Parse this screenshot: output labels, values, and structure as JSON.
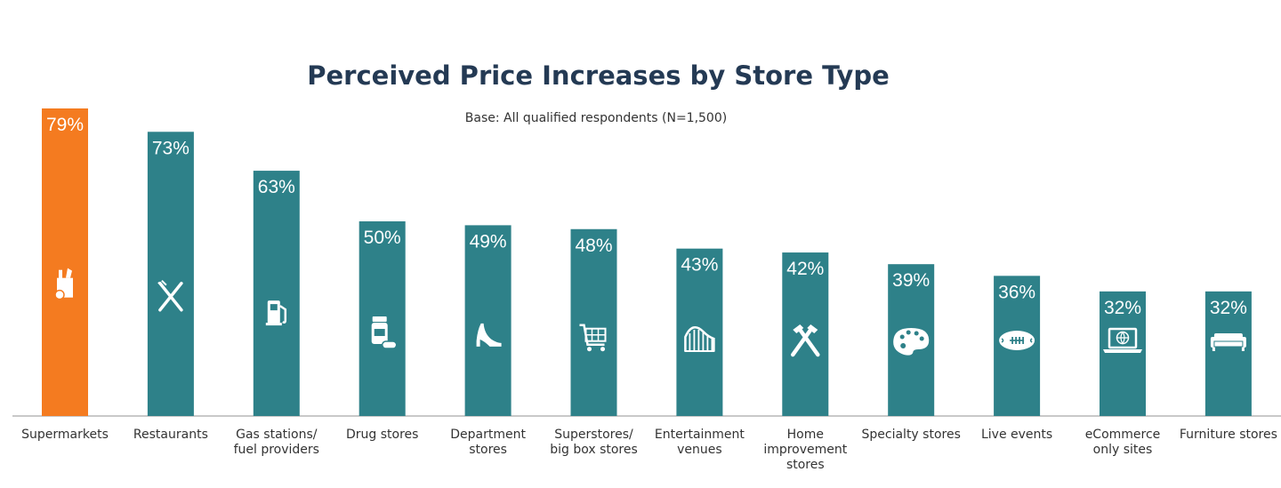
{
  "chart_data": {
    "type": "bar",
    "title": "Perceived Price Increases by Store Type",
    "subtitle": "Base: All qualified respondents (N=1,500)",
    "categories": [
      [
        "Supermarkets"
      ],
      [
        "Restaurants"
      ],
      [
        "Gas stations/",
        "fuel providers"
      ],
      [
        "Drug stores"
      ],
      [
        "Department",
        "stores"
      ],
      [
        "Superstores/",
        "big box stores"
      ],
      [
        "Entertainment",
        "venues"
      ],
      [
        "Home",
        "improvement",
        "stores"
      ],
      [
        "Specialty stores"
      ],
      [
        "Live events"
      ],
      [
        "eCommerce",
        "only sites"
      ],
      [
        "Furniture stores"
      ]
    ],
    "values": [
      79,
      73,
      63,
      50,
      49,
      48,
      43,
      42,
      39,
      36,
      32,
      32
    ],
    "value_labels": [
      "79%",
      "73%",
      "63%",
      "50%",
      "49%",
      "48%",
      "43%",
      "42%",
      "39%",
      "36%",
      "32%",
      "32%"
    ],
    "icons": [
      "grocery-bag-icon",
      "fork-knife-icon",
      "fuel-pump-icon",
      "pill-bottle-icon",
      "high-heel-icon",
      "shopping-cart-icon",
      "roller-coaster-icon",
      "hammer-icon",
      "paint-palette-icon",
      "football-icon",
      "laptop-globe-icon",
      "sofa-icon"
    ],
    "ylim": [
      0,
      79
    ],
    "colors": {
      "highlight": "#f47b20",
      "bar": "#2e8189",
      "axis": "#b5b5b5"
    },
    "highlight_index": 0
  }
}
